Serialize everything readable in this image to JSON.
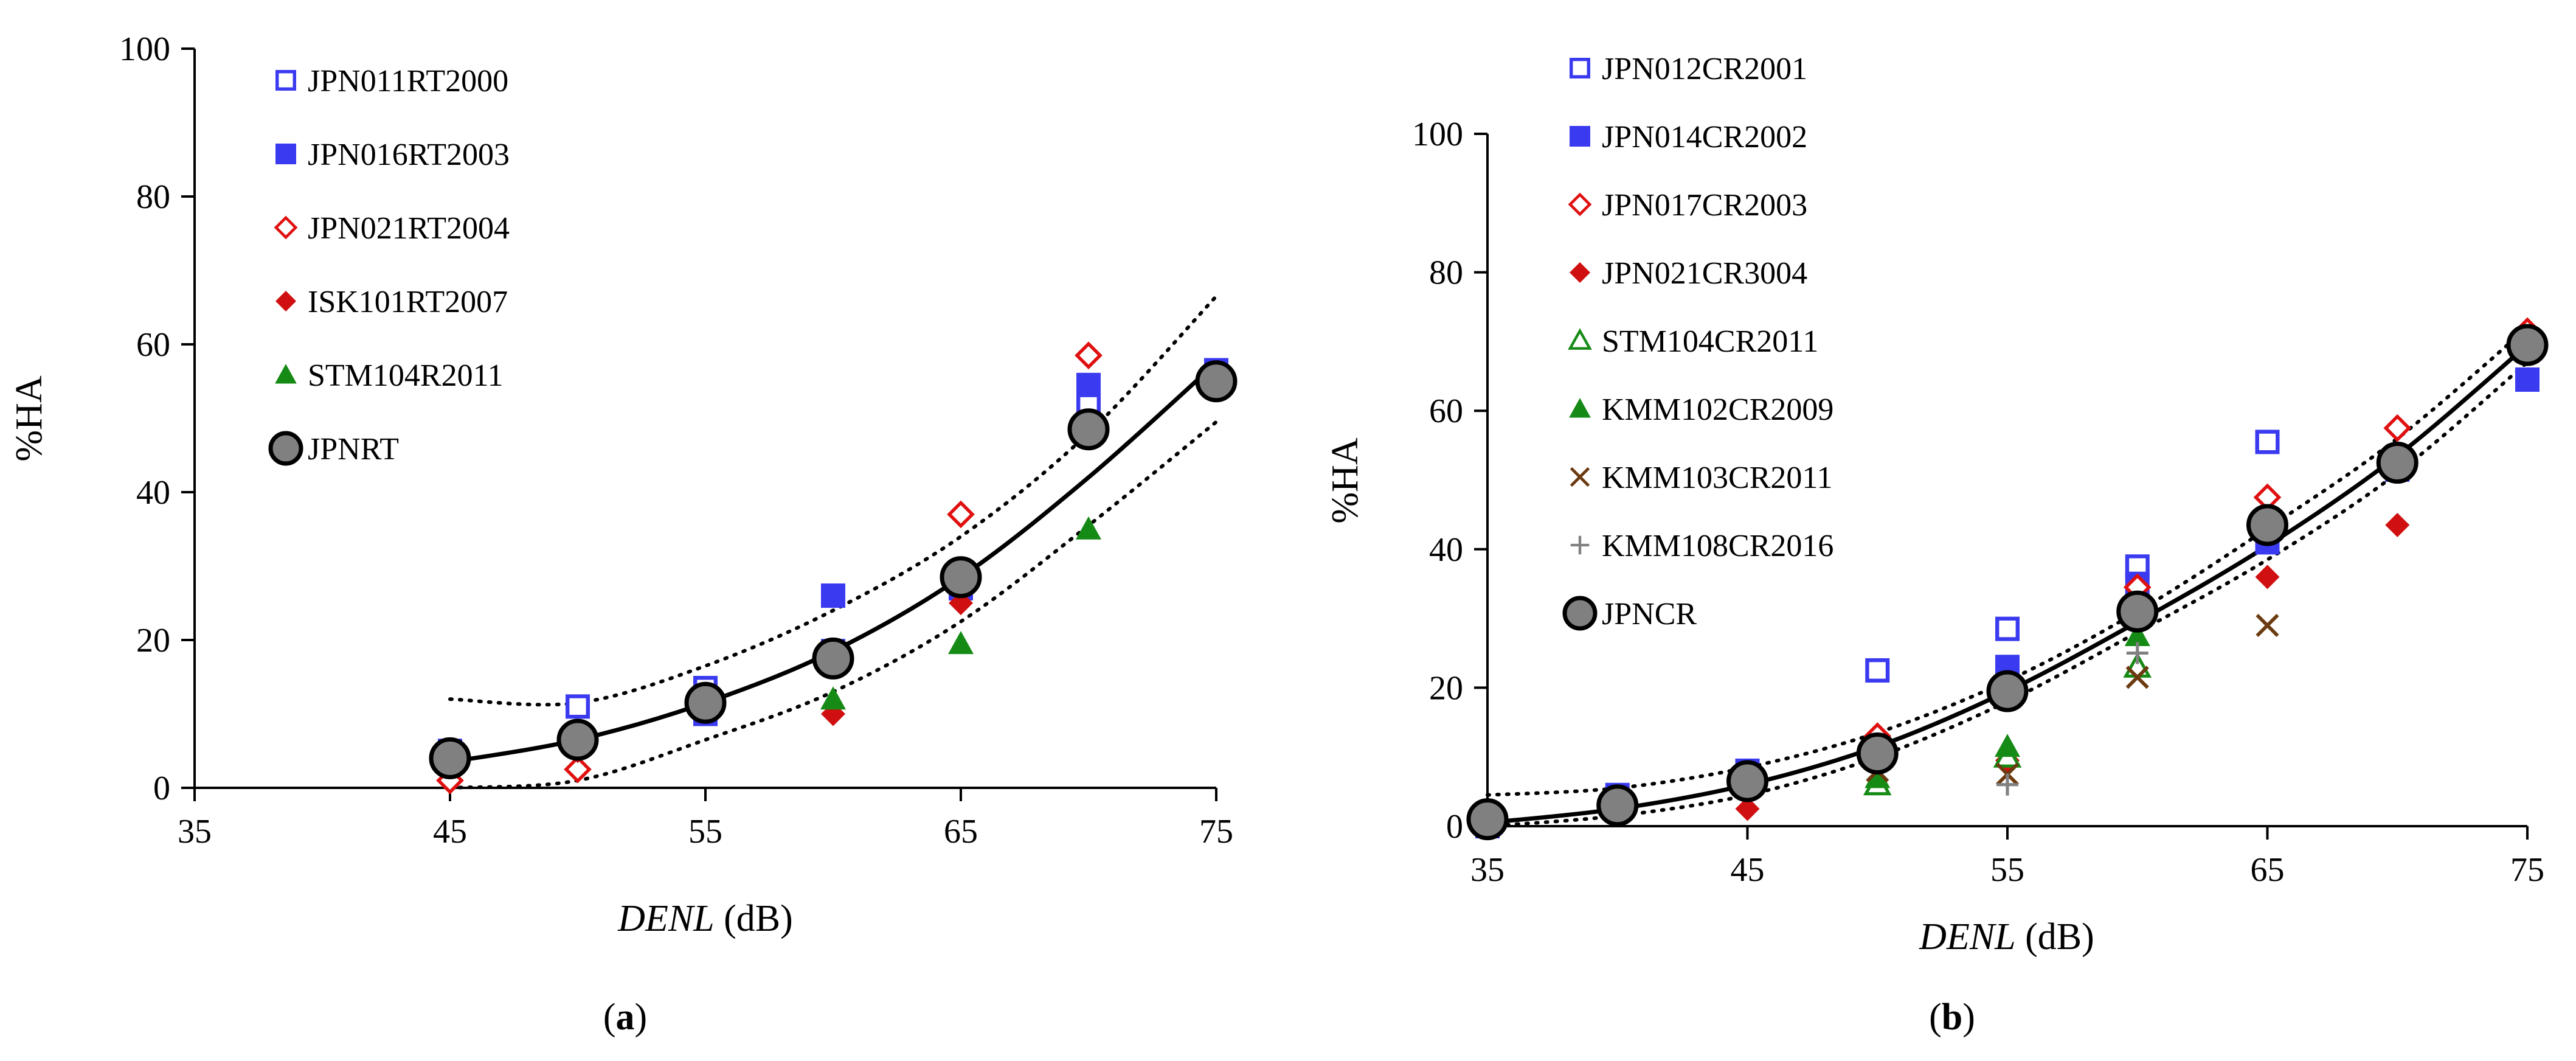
{
  "chart_data": [
    {
      "type": "scatter",
      "panel_label": "(a)",
      "xlabel_italic": "DENL",
      "xlabel_unit": " (dB)",
      "ylabel": "%HA",
      "xlim": [
        35,
        75
      ],
      "ylim": [
        0,
        100
      ],
      "xticks": [
        35,
        45,
        55,
        65,
        75
      ],
      "yticks": [
        0,
        20,
        40,
        60,
        80,
        100
      ],
      "legend_position": "top-left",
      "series": [
        {
          "name": "JPN011RT2000",
          "marker": "square-open",
          "color": "#3a3af0",
          "x": [
            45,
            50,
            55,
            60,
            65,
            70,
            75
          ],
          "y": [
            5,
            11,
            13.5,
            18.5,
            28,
            52,
            56.5
          ]
        },
        {
          "name": "JPN016RT2003",
          "marker": "square",
          "color": "#3a3af0",
          "x": [
            45,
            50,
            55,
            60,
            65,
            70,
            75
          ],
          "y": [
            3.5,
            6,
            10,
            26,
            27,
            54.5,
            55.5
          ]
        },
        {
          "name": "JPN021RT2004",
          "marker": "diamond-open",
          "color": "#e01010",
          "x": [
            45,
            50,
            55,
            60,
            65,
            70
          ],
          "y": [
            1,
            2.5,
            12,
            18,
            37,
            58.5
          ]
        },
        {
          "name": "ISK101RT2007",
          "marker": "diamond",
          "color": "#d01010",
          "x": [
            50,
            55,
            60,
            65
          ],
          "y": [
            5,
            11,
            10,
            25
          ]
        },
        {
          "name": "STM104R2011",
          "marker": "triangle",
          "color": "#158a15",
          "x": [
            60,
            65,
            70
          ],
          "y": [
            12,
            19.5,
            35
          ]
        },
        {
          "name": "JPNRT",
          "marker": "circle",
          "color": "#808080",
          "x": [
            45,
            50,
            55,
            60,
            65,
            70,
            75
          ],
          "y": [
            4,
            6.5,
            11.5,
            17.5,
            28.5,
            48.5,
            55
          ]
        }
      ],
      "fit": {
        "x": [
          45,
          50,
          55,
          60,
          65,
          70,
          75
        ],
        "y": [
          3.5,
          6.5,
          11.5,
          18.5,
          28.5,
          42,
          57.5
        ]
      },
      "ci_upper": {
        "x": [
          45,
          50,
          55,
          60,
          65,
          70,
          75
        ],
        "y": [
          12,
          11.5,
          16.5,
          24,
          34,
          48,
          66.5
        ]
      },
      "ci_lower": {
        "x": [
          45,
          50,
          55,
          60,
          65,
          70,
          75
        ],
        "y": [
          0,
          1,
          6.5,
          13,
          22.5,
          35.5,
          49.5
        ]
      }
    },
    {
      "type": "scatter",
      "panel_label": "(b)",
      "xlabel_italic": "DENL",
      "xlabel_unit": " (dB)",
      "ylabel": "%HA",
      "xlim": [
        35,
        75
      ],
      "ylim": [
        0,
        100
      ],
      "xticks": [
        35,
        45,
        55,
        65,
        75
      ],
      "yticks": [
        0,
        20,
        40,
        60,
        80,
        100
      ],
      "legend_position": "top-left",
      "series": [
        {
          "name": "JPN012CR2001",
          "marker": "square-open",
          "color": "#3a3af0",
          "x": [
            35,
            40,
            45,
            50,
            55,
            60,
            65,
            70,
            75
          ],
          "y": [
            0.5,
            4.5,
            8,
            22.5,
            28.5,
            37.5,
            55.5,
            53,
            69
          ]
        },
        {
          "name": "JPN014CR2002",
          "marker": "square",
          "color": "#3a3af0",
          "x": [
            35,
            40,
            45,
            50,
            55,
            60,
            65,
            70,
            75
          ],
          "y": [
            0,
            3.5,
            8,
            10.5,
            23,
            35,
            41,
            51.5,
            64.5
          ]
        },
        {
          "name": "JPN017CR2003",
          "marker": "diamond-open",
          "color": "#e01010",
          "x": [
            45,
            50,
            55,
            60,
            65,
            70,
            75
          ],
          "y": [
            6,
            13,
            20,
            34.5,
            47.5,
            57.5,
            71.5
          ]
        },
        {
          "name": "JPN021CR3004",
          "marker": "diamond",
          "color": "#d01010",
          "x": [
            45,
            50,
            55,
            60,
            65,
            70
          ],
          "y": [
            2.5,
            9,
            9.5,
            31,
            36,
            43.5
          ]
        },
        {
          "name": "STM104CR2011",
          "marker": "triangle-open",
          "color": "#158a15",
          "x": [
            50,
            55,
            60
          ],
          "y": [
            6,
            10,
            23
          ]
        },
        {
          "name": "KMM102CR2009",
          "marker": "triangle",
          "color": "#158a15",
          "x": [
            50,
            55,
            60
          ],
          "y": [
            7,
            11.5,
            27.5
          ]
        },
        {
          "name": "KMM103CR2011",
          "marker": "x",
          "color": "#6b3a10",
          "x": [
            50,
            55,
            60,
            65
          ],
          "y": [
            8,
            7.5,
            21.5,
            29
          ]
        },
        {
          "name": "KMM108CR2016",
          "marker": "plus",
          "color": "#808080",
          "x": [
            55,
            60
          ],
          "y": [
            6,
            25
          ]
        },
        {
          "name": "JPNCR",
          "marker": "circle",
          "color": "#808080",
          "x": [
            35,
            40,
            45,
            50,
            55,
            60,
            65,
            70,
            75
          ],
          "y": [
            1,
            3,
            6.5,
            10.5,
            19.5,
            31,
            43.5,
            52.5,
            69.5
          ]
        }
      ],
      "fit": {
        "x": [
          35,
          40,
          45,
          50,
          55,
          60,
          65,
          70,
          75
        ],
        "y": [
          0.5,
          2.5,
          6,
          11.5,
          19.5,
          29.5,
          40.5,
          53.5,
          69.5
        ]
      },
      "ci_upper": {
        "x": [
          35,
          40,
          45,
          50,
          55,
          60,
          65,
          70,
          75
        ],
        "y": [
          4.5,
          5.5,
          8.5,
          13.5,
          21,
          31,
          43,
          56,
          72
        ]
      },
      "ci_lower": {
        "x": [
          35,
          40,
          45,
          50,
          55,
          60,
          65,
          70,
          75
        ],
        "y": [
          0,
          1.5,
          4.5,
          10,
          18,
          28,
          38.5,
          51,
          67
        ]
      }
    }
  ]
}
